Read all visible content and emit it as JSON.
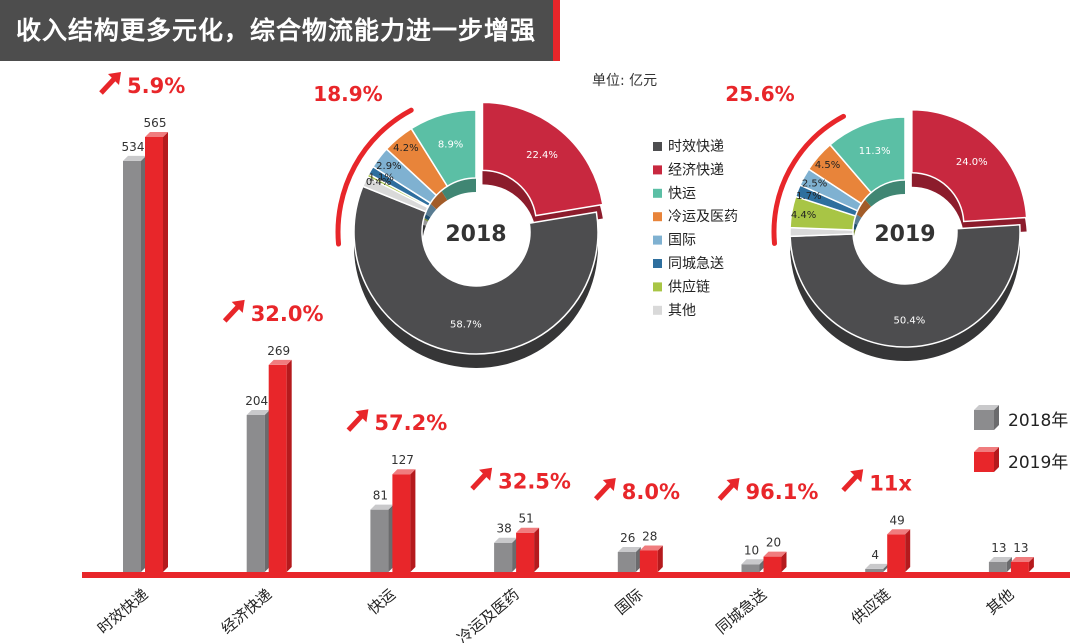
{
  "title": "收入结构更多元化，综合物流能力进一步增强",
  "unit_label": "单位: 亿元",
  "colors": {
    "bar_2018": "#8c8c8e",
    "bar_2018_top": "#c9c9cb",
    "bar_2018_side": "#6b6b6d",
    "bar_2019": "#e8262a",
    "bar_2019_top": "#f07c7e",
    "bar_2019_side": "#b51a1d",
    "accent": "#e8262a",
    "banner": "#4d4d4d",
    "text": "#333333"
  },
  "chart_data": [
    {
      "type": "bar",
      "title": "收入结构更多元化，综合物流能力进一步增强",
      "unit": "单位: 亿元",
      "categories": [
        "时效快递",
        "经济快递",
        "快运",
        "冷运及医药",
        "国际",
        "同城急送",
        "供应链",
        "其他"
      ],
      "series": [
        {
          "name": "2018年",
          "values": [
            534,
            204,
            81,
            38,
            26,
            10,
            4,
            13
          ]
        },
        {
          "name": "2019年",
          "values": [
            565,
            269,
            127,
            51,
            28,
            20,
            49,
            13
          ]
        }
      ],
      "growth_labels": [
        "5.9%",
        "32.0%",
        "57.2%",
        "32.5%",
        "8.0%",
        "96.1%",
        "11x",
        ""
      ],
      "ylim": [
        0,
        600
      ],
      "legend": "right",
      "grid": false
    },
    {
      "type": "pie",
      "center_label": "2018",
      "highlight_label": "18.9%",
      "slices": [
        {
          "name": "时效快递",
          "value": 58.7,
          "label": "58.7%",
          "color": "#4d4d4f"
        },
        {
          "name": "经济快递",
          "value": 22.4,
          "label": "22.4%",
          "color": "#c8283f"
        },
        {
          "name": "快运",
          "value": 8.9,
          "label": "8.9%",
          "color": "#5bbfa5"
        },
        {
          "name": "冷运及医药",
          "value": 4.2,
          "label": "4.2%",
          "color": "#e8843a"
        },
        {
          "name": "国际",
          "value": 2.9,
          "label": "2.9%",
          "color": "#7fb1d1"
        },
        {
          "name": "同城急送",
          "value": 1.1,
          "label": "1.1%",
          "color": "#2e6f9e"
        },
        {
          "name": "供应链",
          "value": 0.4,
          "label": "0.4%",
          "color": "#a8c545"
        },
        {
          "name": "其他",
          "value": 1.4,
          "label": "",
          "color": "#d9d9d9"
        }
      ]
    },
    {
      "type": "pie",
      "center_label": "2019",
      "highlight_label": "25.6%",
      "slices": [
        {
          "name": "时效快递",
          "value": 50.4,
          "label": "50.4%",
          "color": "#4d4d4f"
        },
        {
          "name": "经济快递",
          "value": 24.0,
          "label": "24.0%",
          "color": "#c8283f"
        },
        {
          "name": "快运",
          "value": 11.3,
          "label": "11.3%",
          "color": "#5bbfa5"
        },
        {
          "name": "冷运及医药",
          "value": 4.5,
          "label": "4.5%",
          "color": "#e8843a"
        },
        {
          "name": "国际",
          "value": 2.5,
          "label": "2.5%",
          "color": "#7fb1d1"
        },
        {
          "name": "同城急送",
          "value": 1.7,
          "label": "1.7%",
          "color": "#2e6f9e"
        },
        {
          "name": "供应链",
          "value": 4.4,
          "label": "4.4%",
          "color": "#a8c545"
        },
        {
          "name": "其他",
          "value": 1.2,
          "label": "",
          "color": "#d9d9d9"
        }
      ]
    }
  ],
  "legend_items": [
    {
      "name": "时效快递",
      "color": "#4d4d4f"
    },
    {
      "name": "经济快递",
      "color": "#c8283f"
    },
    {
      "name": "快运",
      "color": "#5bbfa5"
    },
    {
      "name": "冷运及医药",
      "color": "#e8843a"
    },
    {
      "name": "国际",
      "color": "#7fb1d1"
    },
    {
      "name": "同城急送",
      "color": "#2e6f9e"
    },
    {
      "name": "供应链",
      "color": "#a8c545"
    },
    {
      "name": "其他",
      "color": "#d9d9d9"
    }
  ]
}
